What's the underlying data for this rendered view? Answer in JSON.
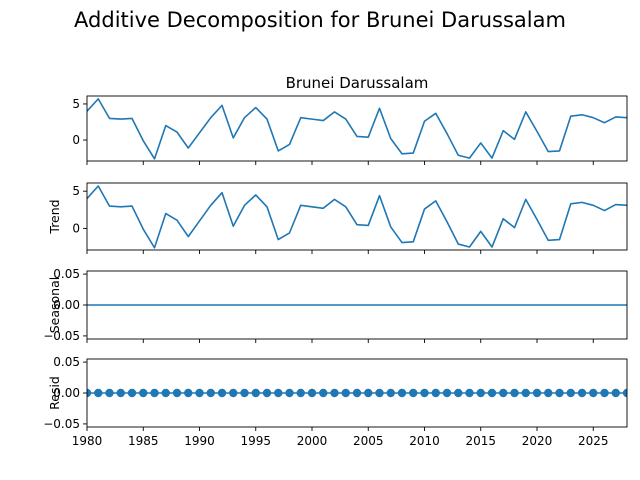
{
  "figure": {
    "title": "Additive Decomposition for Brunei Darussalam"
  },
  "colors": {
    "line": "#1f77b4",
    "axes": "#000000",
    "background": "#ffffff"
  },
  "chart_data": [
    {
      "type": "line",
      "title": "Brunei Darussalam",
      "ylabel": "",
      "x": [
        1980,
        1981,
        1982,
        1983,
        1984,
        1985,
        1986,
        1987,
        1988,
        1989,
        1990,
        1991,
        1992,
        1993,
        1994,
        1995,
        1996,
        1997,
        1998,
        1999,
        2000,
        2001,
        2002,
        2003,
        2004,
        2005,
        2006,
        2007,
        2008,
        2009,
        2010,
        2011,
        2012,
        2013,
        2014,
        2015,
        2016,
        2017,
        2018,
        2019,
        2020,
        2021,
        2022,
        2023,
        2024,
        2025,
        2026,
        2027,
        2028
      ],
      "values": [
        4.0,
        5.7,
        3.0,
        2.9,
        3.0,
        -0.1,
        -2.6,
        2.0,
        1.1,
        -1.1,
        1.0,
        3.1,
        4.8,
        0.3,
        3.1,
        4.5,
        2.9,
        -1.5,
        -0.6,
        3.1,
        2.9,
        2.7,
        3.9,
        2.9,
        0.5,
        0.4,
        4.4,
        0.2,
        -1.9,
        -1.8,
        2.6,
        3.7,
        0.9,
        -2.1,
        -2.5,
        -0.4,
        -2.5,
        1.3,
        0.1,
        3.9,
        1.2,
        -1.6,
        -1.5,
        3.3,
        3.5,
        3.1,
        2.4,
        3.2,
        3.1
      ],
      "xlim": [
        1980,
        2028
      ],
      "ylim": [
        -2.9,
        6.1
      ],
      "yticks": [
        0,
        5
      ],
      "ytick_labels": [
        "0",
        "5"
      ],
      "show_xtick_labels": false,
      "marker": "none"
    },
    {
      "type": "line",
      "title": "",
      "ylabel": "Trend",
      "x": [
        1980,
        1981,
        1982,
        1983,
        1984,
        1985,
        1986,
        1987,
        1988,
        1989,
        1990,
        1991,
        1992,
        1993,
        1994,
        1995,
        1996,
        1997,
        1998,
        1999,
        2000,
        2001,
        2002,
        2003,
        2004,
        2005,
        2006,
        2007,
        2008,
        2009,
        2010,
        2011,
        2012,
        2013,
        2014,
        2015,
        2016,
        2017,
        2018,
        2019,
        2020,
        2021,
        2022,
        2023,
        2024,
        2025,
        2026,
        2027,
        2028
      ],
      "values": [
        4.0,
        5.7,
        3.0,
        2.9,
        3.0,
        -0.1,
        -2.6,
        2.0,
        1.1,
        -1.1,
        1.0,
        3.1,
        4.8,
        0.3,
        3.1,
        4.5,
        2.9,
        -1.5,
        -0.6,
        3.1,
        2.9,
        2.7,
        3.9,
        2.9,
        0.5,
        0.4,
        4.4,
        0.2,
        -1.9,
        -1.8,
        2.6,
        3.7,
        0.9,
        -2.1,
        -2.5,
        -0.4,
        -2.5,
        1.3,
        0.1,
        3.9,
        1.2,
        -1.6,
        -1.5,
        3.3,
        3.5,
        3.1,
        2.4,
        3.2,
        3.1
      ],
      "xlim": [
        1980,
        2028
      ],
      "ylim": [
        -2.9,
        6.1
      ],
      "yticks": [
        0,
        5
      ],
      "ytick_labels": [
        "0",
        "5"
      ],
      "show_xtick_labels": false,
      "marker": "none"
    },
    {
      "type": "line",
      "title": "",
      "ylabel": "Seasonal",
      "x": [
        1980,
        2028
      ],
      "values": [
        0.0,
        0.0
      ],
      "xlim": [
        1980,
        2028
      ],
      "ylim": [
        -0.055,
        0.055
      ],
      "yticks": [
        -0.05,
        0.0,
        0.05
      ],
      "ytick_labels": [
        "−0.05",
        "0.00",
        "0.05"
      ],
      "show_xtick_labels": false,
      "marker": "none"
    },
    {
      "type": "scatter",
      "title": "",
      "ylabel": "Resid",
      "x": [
        1980,
        1981,
        1982,
        1983,
        1984,
        1985,
        1986,
        1987,
        1988,
        1989,
        1990,
        1991,
        1992,
        1993,
        1994,
        1995,
        1996,
        1997,
        1998,
        1999,
        2000,
        2001,
        2002,
        2003,
        2004,
        2005,
        2006,
        2007,
        2008,
        2009,
        2010,
        2011,
        2012,
        2013,
        2014,
        2015,
        2016,
        2017,
        2018,
        2019,
        2020,
        2021,
        2022,
        2023,
        2024,
        2025,
        2026,
        2027,
        2028
      ],
      "values": [
        0,
        0,
        0,
        0,
        0,
        0,
        0,
        0,
        0,
        0,
        0,
        0,
        0,
        0,
        0,
        0,
        0,
        0,
        0,
        0,
        0,
        0,
        0,
        0,
        0,
        0,
        0,
        0,
        0,
        0,
        0,
        0,
        0,
        0,
        0,
        0,
        0,
        0,
        0,
        0,
        0,
        0,
        0,
        0,
        0,
        0,
        0,
        0,
        0
      ],
      "xlim": [
        1980,
        2028
      ],
      "ylim": [
        -0.055,
        0.055
      ],
      "yticks": [
        -0.05,
        0.0,
        0.05
      ],
      "ytick_labels": [
        "−0.05",
        "0.00",
        "0.05"
      ],
      "show_xtick_labels": true,
      "xticks": [
        1980,
        1985,
        1990,
        1995,
        2000,
        2005,
        2010,
        2015,
        2020,
        2025
      ],
      "xtick_labels": [
        "1980",
        "1985",
        "1990",
        "1995",
        "2000",
        "2005",
        "2010",
        "2015",
        "2020",
        "2025"
      ],
      "baseline": 0,
      "marker": "circle"
    }
  ]
}
